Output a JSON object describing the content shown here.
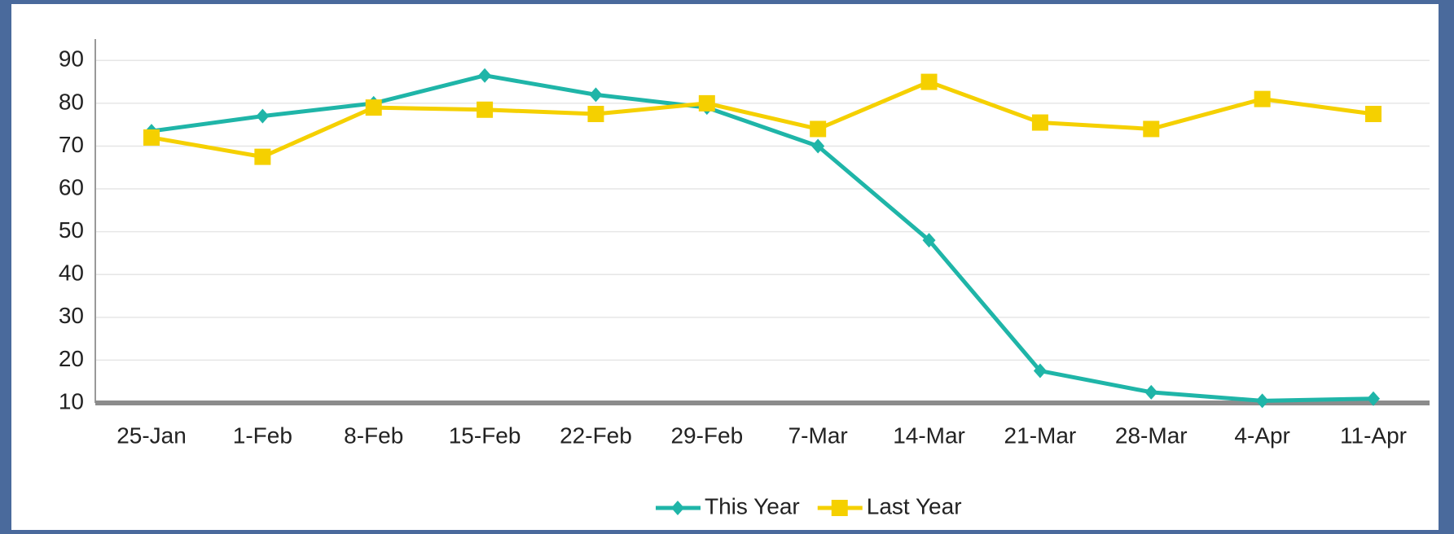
{
  "chart_data": {
    "type": "line",
    "categories": [
      "25-Jan",
      "1-Feb",
      "8-Feb",
      "15-Feb",
      "22-Feb",
      "29-Feb",
      "7-Mar",
      "14-Mar",
      "21-Mar",
      "28-Mar",
      "4-Apr",
      "11-Apr"
    ],
    "series": [
      {
        "name": "This Year",
        "color": "#1fb5a8",
        "marker": "diamond",
        "values": [
          73.5,
          77,
          80,
          86.5,
          82,
          79,
          70,
          48,
          17.5,
          12.5,
          10.5,
          11
        ]
      },
      {
        "name": "Last Year",
        "color": "#f5d000",
        "marker": "square",
        "values": [
          72,
          67.5,
          79,
          78.5,
          77.5,
          80,
          74,
          85,
          75.5,
          74,
          81,
          77.5
        ]
      }
    ],
    "ylim": [
      10,
      95
    ],
    "yticks": [
      10,
      20,
      30,
      40,
      50,
      60,
      70,
      80,
      90
    ],
    "grid": true,
    "legend": "bottom"
  }
}
